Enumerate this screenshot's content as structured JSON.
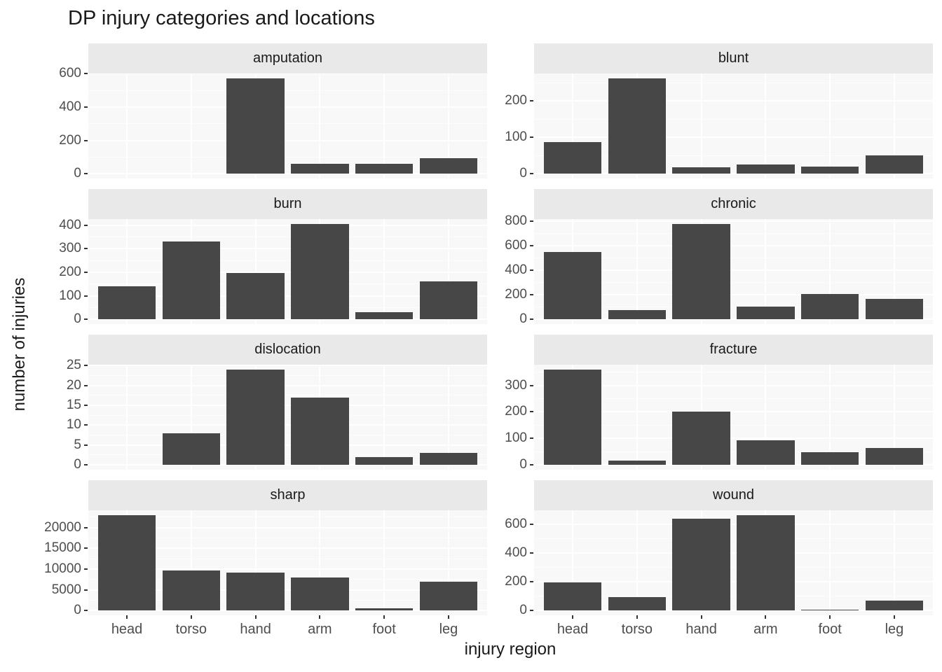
{
  "chart_data": {
    "type": "bar",
    "title": "DP injury categories and locations",
    "xlabel": "injury region",
    "ylabel": "number of injuries",
    "categories": [
      "head",
      "torso",
      "hand",
      "arm",
      "foot",
      "leg"
    ],
    "facet_variable": "injury category",
    "facet_layout": {
      "rows": 4,
      "cols": 2,
      "free_y_scales": true
    },
    "legend": "none",
    "grid": "on",
    "bar_color": "#474747",
    "panel_bg": "#F8F8F8",
    "strip_bg": "#E9E9E9",
    "grid_color": "#FFFFFF",
    "axis_text_color": "#4D4D4D",
    "facets": [
      {
        "name": "amputation",
        "values": [
          0,
          0,
          573,
          60,
          60,
          95
        ],
        "yticks": [
          0,
          200,
          400,
          600
        ]
      },
      {
        "name": "blunt",
        "values": [
          88,
          263,
          18,
          25,
          20,
          50
        ],
        "yticks": [
          0,
          100,
          200
        ]
      },
      {
        "name": "burn",
        "values": [
          140,
          330,
          197,
          405,
          30,
          162
        ],
        "yticks": [
          0,
          100,
          200,
          300,
          400
        ]
      },
      {
        "name": "chronic",
        "values": [
          548,
          75,
          780,
          105,
          205,
          165
        ],
        "yticks": [
          0,
          200,
          400,
          600,
          800
        ]
      },
      {
        "name": "dislocation",
        "values": [
          0,
          8,
          24,
          17,
          2,
          3
        ],
        "yticks": [
          0,
          5,
          10,
          15,
          20,
          25
        ]
      },
      {
        "name": "fracture",
        "values": [
          360,
          17,
          202,
          94,
          48,
          63
        ],
        "yticks": [
          0,
          100,
          200,
          300
        ]
      },
      {
        "name": "sharp",
        "values": [
          23000,
          9600,
          9100,
          8000,
          600,
          7000
        ],
        "yticks": [
          0,
          5000,
          10000,
          15000,
          20000
        ]
      },
      {
        "name": "wound",
        "values": [
          195,
          95,
          640,
          665,
          8,
          70
        ],
        "yticks": [
          0,
          200,
          400,
          600
        ]
      }
    ]
  }
}
